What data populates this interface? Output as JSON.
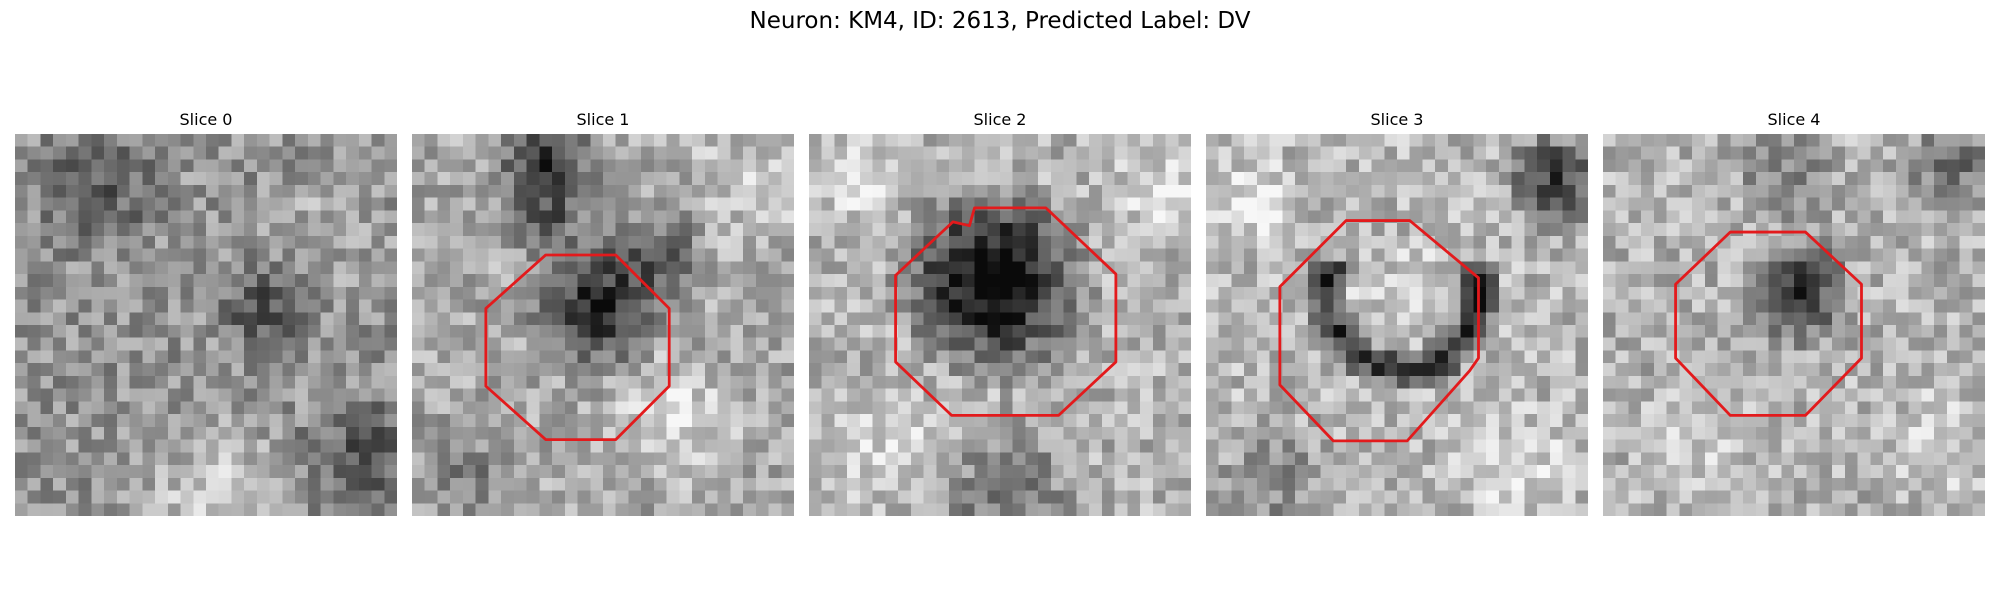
{
  "figure": {
    "title": "Neuron: KM4, ID: 2613, Predicted Label: DV"
  },
  "panels": [
    {
      "title": "Slice 0",
      "outline": false
    },
    {
      "title": "Slice 1",
      "outline": true
    },
    {
      "title": "Slice 2",
      "outline": true
    },
    {
      "title": "Slice 3",
      "outline": true
    },
    {
      "title": "Slice 4",
      "outline": true
    }
  ],
  "colors": {
    "outline": "#e31a1c",
    "colormap": "gray"
  }
}
